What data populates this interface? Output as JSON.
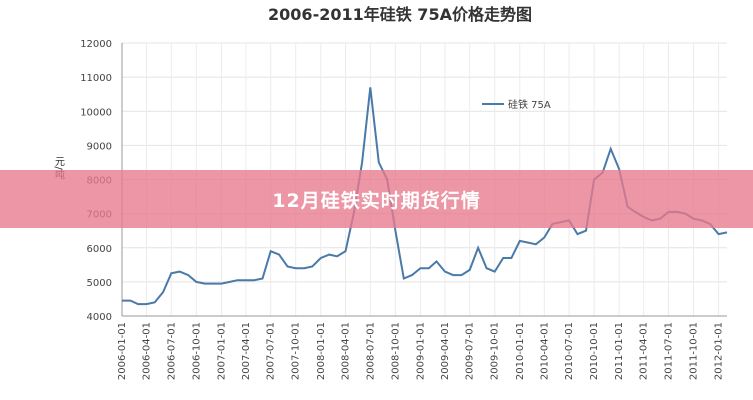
{
  "chart_data": {
    "type": "line",
    "title": "2006-2011年硅铁 75A价格走势图",
    "y_label": "元/吨",
    "x": [
      "2006-01-01",
      "2006-02-01",
      "2006-03-01",
      "2006-04-01",
      "2006-05-01",
      "2006-06-01",
      "2006-07-01",
      "2006-08-01",
      "2006-09-01",
      "2006-10-01",
      "2006-11-01",
      "2006-12-01",
      "2007-01-01",
      "2007-02-01",
      "2007-03-01",
      "2007-04-01",
      "2007-05-01",
      "2007-06-01",
      "2007-07-01",
      "2007-08-01",
      "2007-09-01",
      "2007-10-01",
      "2007-11-01",
      "2007-12-01",
      "2008-01-01",
      "2008-02-01",
      "2008-03-01",
      "2008-04-01",
      "2008-05-01",
      "2008-06-01",
      "2008-07-01",
      "2008-08-01",
      "2008-09-01",
      "2008-10-01",
      "2008-11-01",
      "2008-12-01",
      "2009-01-01",
      "2009-02-01",
      "2009-03-01",
      "2009-04-01",
      "2009-05-01",
      "2009-06-01",
      "2009-07-01",
      "2009-08-01",
      "2009-09-01",
      "2009-10-01",
      "2009-11-01",
      "2009-12-01",
      "2010-01-01",
      "2010-02-01",
      "2010-03-01",
      "2010-04-01",
      "2010-05-01",
      "2010-06-01",
      "2010-07-01",
      "2010-08-01",
      "2010-09-01",
      "2010-10-01",
      "2010-11-01",
      "2010-12-01",
      "2011-01-01",
      "2011-02-01",
      "2011-03-01",
      "2011-04-01",
      "2011-05-01",
      "2011-06-01",
      "2011-07-01",
      "2011-08-01",
      "2011-09-01",
      "2011-10-01",
      "2011-11-01",
      "2011-12-01",
      "2012-01-01",
      "2012-02-01"
    ],
    "series": [
      {
        "name": "硅铁 75A",
        "color": "#4a7aa8",
        "values": [
          4450,
          4450,
          4350,
          4350,
          4400,
          4700,
          5250,
          5300,
          5200,
          5000,
          4950,
          4950,
          4950,
          5000,
          5050,
          5050,
          5050,
          5100,
          5900,
          5800,
          5450,
          5400,
          5400,
          5450,
          5700,
          5800,
          5750,
          5900,
          7000,
          8500,
          10700,
          8500,
          8000,
          6500,
          5100,
          5200,
          5400,
          5400,
          5600,
          5300,
          5200,
          5200,
          5350,
          6000,
          5400,
          5300,
          5700,
          5700,
          6200,
          6150,
          6100,
          6300,
          6700,
          6750,
          6800,
          6400,
          6500,
          8000,
          8200,
          8900,
          8300,
          7200,
          7050,
          6900,
          6800,
          6850,
          7050,
          7050,
          7000,
          6850,
          6800,
          6700,
          6400,
          6450
        ]
      }
    ],
    "xlim": [
      "2006-01-01",
      "2012-02-01"
    ],
    "xticks": [
      "2006-01-01",
      "2006-04-01",
      "2006-07-01",
      "2006-10-01",
      "2007-01-01",
      "2007-04-01",
      "2007-07-01",
      "2007-10-01",
      "2008-01-01",
      "2008-04-01",
      "2008-07-01",
      "2008-10-01",
      "2009-01-01",
      "2009-04-01",
      "2009-07-01",
      "2009-10-01",
      "2010-01-01",
      "2010-04-01",
      "2010-07-01",
      "2010-10-01",
      "2011-01-01",
      "2011-04-01",
      "2011-07-01",
      "2011-10-01",
      "2012-01-01"
    ],
    "ylim": [
      4000,
      12000
    ],
    "yticks": [
      4000,
      5000,
      6000,
      7000,
      8000,
      9000,
      10000,
      11000,
      12000
    ],
    "grid": true,
    "legend": "top-right"
  },
  "overlay_title": "12月硅铁实时期货行情"
}
